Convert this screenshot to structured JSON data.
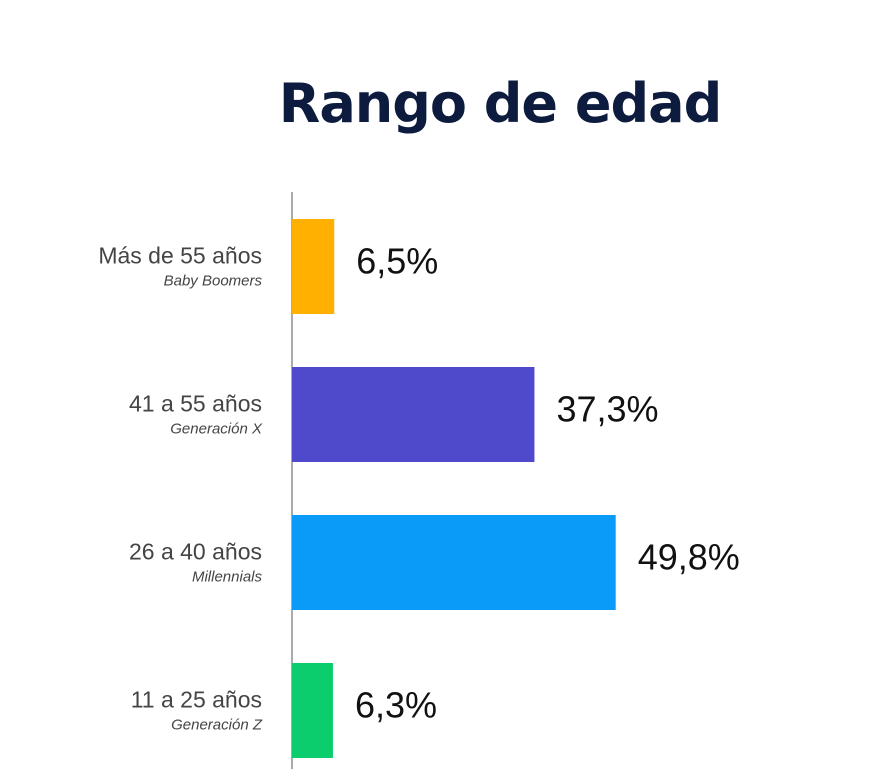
{
  "chart_data": {
    "type": "bar",
    "orientation": "horizontal",
    "title": "Rango de edad",
    "categories": [
      "Más de 55 años",
      "41 a 55 años",
      "26 a 40 años",
      "11 a 25 años"
    ],
    "subcategories": [
      "Baby Boomers",
      "Generación X",
      "Millennials",
      "Generación Z"
    ],
    "values": [
      6.5,
      37.3,
      49.8,
      6.3
    ],
    "value_labels": [
      "6,5%",
      "37,3%",
      "49,8%",
      "6,3%"
    ],
    "colors": [
      "#ffb000",
      "#4f4acb",
      "#0a9bf8",
      "#0ccd6e"
    ],
    "xlim": [
      0,
      100
    ],
    "grid": false,
    "legend": "none"
  }
}
